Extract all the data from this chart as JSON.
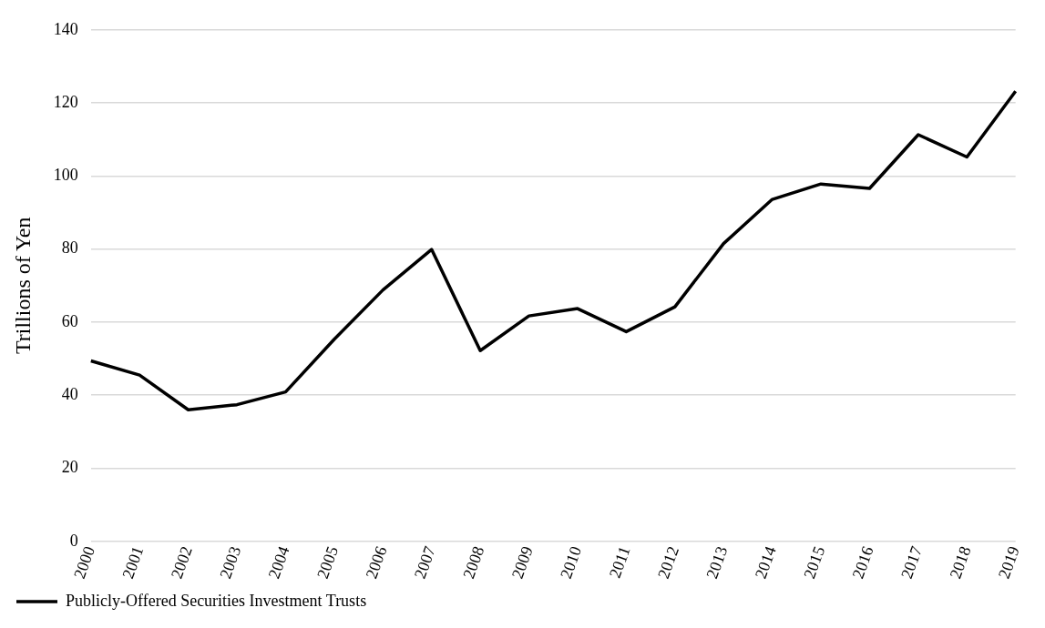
{
  "chart_data": {
    "type": "line",
    "ylabel": "Trillions of Yen",
    "categories": [
      "2000",
      "2001",
      "2002",
      "2003",
      "2004",
      "2005",
      "2006",
      "2007",
      "2008",
      "2009",
      "2010",
      "2011",
      "2012",
      "2013",
      "2014",
      "2015",
      "2016",
      "2017",
      "2018",
      "2019"
    ],
    "series": [
      {
        "name": "Publicly-Offered Securities Investment Trusts",
        "color": "#000000",
        "values": [
          49.4,
          45.5,
          36.0,
          37.4,
          40.9,
          55.3,
          68.8,
          79.9,
          52.2,
          61.7,
          63.7,
          57.4,
          64.2,
          81.5,
          93.6,
          97.8,
          96.6,
          111.3,
          105.2,
          123.2
        ]
      }
    ],
    "ylim": [
      0,
      140
    ],
    "yticks": [
      0,
      20,
      40,
      60,
      80,
      100,
      120,
      140
    ],
    "grid": "y",
    "legend": "bottom left",
    "marker": "none",
    "line_style": "solid"
  }
}
